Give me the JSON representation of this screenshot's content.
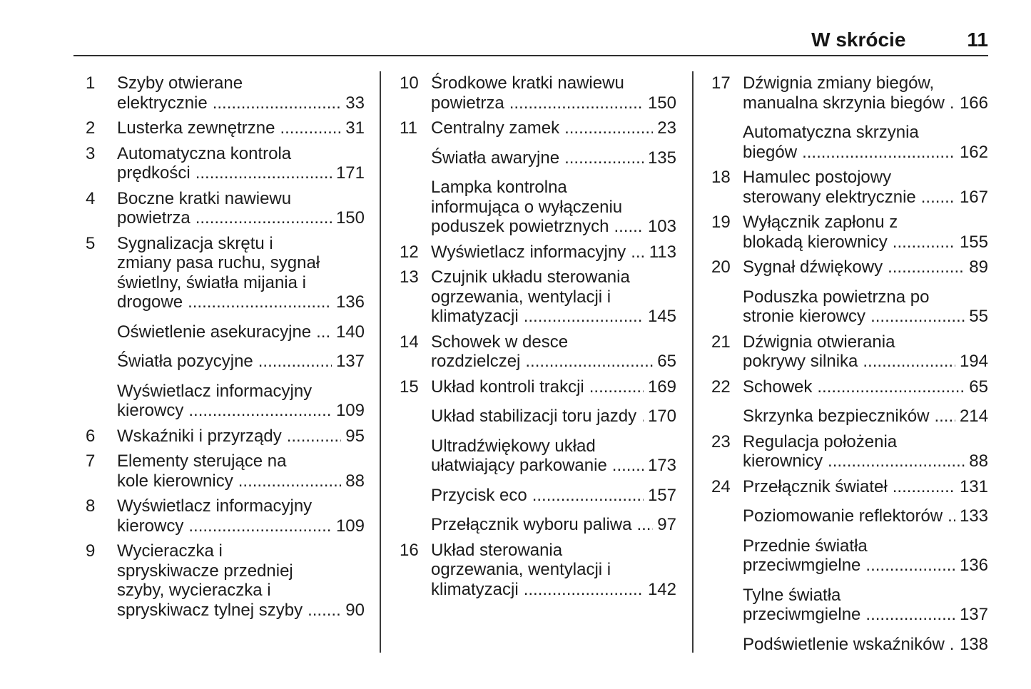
{
  "header": {
    "title": "W skrócie",
    "page_number": "11"
  },
  "columns": [
    {
      "entries": [
        {
          "num": "1",
          "lines": [
            "Szyby otwierane",
            "elektrycznie"
          ],
          "page": "33"
        },
        {
          "num": "2",
          "lines": [
            "Lusterka zewnętrzne"
          ],
          "page": "31"
        },
        {
          "num": "3",
          "lines": [
            "Automatyczna kontrola",
            "prędkości"
          ],
          "page": "171"
        },
        {
          "num": "4",
          "lines": [
            "Boczne kratki nawiewu",
            "powietrza"
          ],
          "page": "150"
        },
        {
          "num": "5",
          "lines": [
            "Sygnalizacja skrętu i",
            "zmiany pasa ruchu, sygnał",
            "świetlny, światła mijania i",
            "drogowe"
          ],
          "page": "136"
        },
        {
          "num": "",
          "lines": [
            "Oświetlenie asekuracyjne"
          ],
          "page": "140"
        },
        {
          "num": "",
          "lines": [
            "Światła pozycyjne"
          ],
          "page": "137"
        },
        {
          "num": "",
          "lines": [
            "Wyświetlacz informacyjny",
            "kierowcy"
          ],
          "page": "109"
        },
        {
          "num": "6",
          "lines": [
            "Wskaźniki i przyrządy"
          ],
          "page": "95"
        },
        {
          "num": "7",
          "lines": [
            "Elementy sterujące na",
            "kole kierownicy"
          ],
          "page": "88"
        },
        {
          "num": "8",
          "lines": [
            "Wyświetlacz informacyjny",
            "kierowcy"
          ],
          "page": "109"
        },
        {
          "num": "9",
          "lines": [
            "Wycieraczka i",
            "spryskiwacze przedniej",
            "szyby, wycieraczka i",
            "spryskiwacz tylnej szyby"
          ],
          "page": "90"
        }
      ]
    },
    {
      "entries": [
        {
          "num": "10",
          "lines": [
            "Środkowe kratki nawiewu",
            "powietrza"
          ],
          "page": "150"
        },
        {
          "num": "11",
          "lines": [
            "Centralny zamek"
          ],
          "page": "23"
        },
        {
          "num": "",
          "lines": [
            "Światła awaryjne"
          ],
          "page": "135"
        },
        {
          "num": "",
          "lines": [
            "Lampka kontrolna",
            "informująca o wyłączeniu",
            "poduszek powietrznych"
          ],
          "page": "103"
        },
        {
          "num": "12",
          "lines": [
            "Wyświetlacz informacyjny"
          ],
          "page": "113"
        },
        {
          "num": "13",
          "lines": [
            "Czujnik układu sterowania",
            "ogrzewania, wentylacji i",
            "klimatyzacji"
          ],
          "page": "145"
        },
        {
          "num": "14",
          "lines": [
            "Schowek w desce",
            "rozdzielczej"
          ],
          "page": "65"
        },
        {
          "num": "15",
          "lines": [
            "Układ kontroli trakcji"
          ],
          "page": "169"
        },
        {
          "num": "",
          "lines": [
            "Układ stabilizacji toru jazdy"
          ],
          "page": "170"
        },
        {
          "num": "",
          "lines": [
            "Ultradźwiękowy układ",
            "ułatwiający parkowanie"
          ],
          "page": "173"
        },
        {
          "num": "",
          "lines": [
            "Przycisk eco"
          ],
          "page": "157"
        },
        {
          "num": "",
          "lines": [
            "Przełącznik wyboru paliwa"
          ],
          "page": "97"
        },
        {
          "num": "16",
          "lines": [
            "Układ sterowania",
            "ogrzewania, wentylacji i",
            "klimatyzacji"
          ],
          "page": "142"
        }
      ]
    },
    {
      "entries": [
        {
          "num": "17",
          "lines": [
            "Dźwignia zmiany biegów,",
            "manualna skrzynia biegów"
          ],
          "page": "166"
        },
        {
          "num": "",
          "lines": [
            "Automatyczna skrzynia",
            "biegów"
          ],
          "page": "162"
        },
        {
          "num": "18",
          "lines": [
            "Hamulec postojowy",
            "sterowany elektrycznie"
          ],
          "page": "167"
        },
        {
          "num": "19",
          "lines": [
            "Wyłącznik zapłonu z",
            "blokadą kierownicy"
          ],
          "page": "155"
        },
        {
          "num": "20",
          "lines": [
            "Sygnał dźwiękowy"
          ],
          "page": "89"
        },
        {
          "num": "",
          "lines": [
            "Poduszka powietrzna po",
            "stronie kierowcy"
          ],
          "page": "55"
        },
        {
          "num": "21",
          "lines": [
            "Dźwignia otwierania",
            "pokrywy silnika"
          ],
          "page": "194"
        },
        {
          "num": "22",
          "lines": [
            "Schowek"
          ],
          "page": "65"
        },
        {
          "num": "",
          "lines": [
            "Skrzynka bezpieczników"
          ],
          "page": "214"
        },
        {
          "num": "23",
          "lines": [
            "Regulacja położenia",
            "kierownicy"
          ],
          "page": "88"
        },
        {
          "num": "24",
          "lines": [
            "Przełącznik świateł"
          ],
          "page": "131"
        },
        {
          "num": "",
          "lines": [
            "Poziomowanie reflektorów"
          ],
          "page": "133"
        },
        {
          "num": "",
          "lines": [
            "Przednie światła",
            "przeciwmgielne"
          ],
          "page": "136"
        },
        {
          "num": "",
          "lines": [
            "Tylne światła",
            "przeciwmgielne"
          ],
          "page": "137"
        },
        {
          "num": "",
          "lines": [
            "Podświetlenie wskaźników"
          ],
          "page": "138"
        }
      ]
    }
  ]
}
